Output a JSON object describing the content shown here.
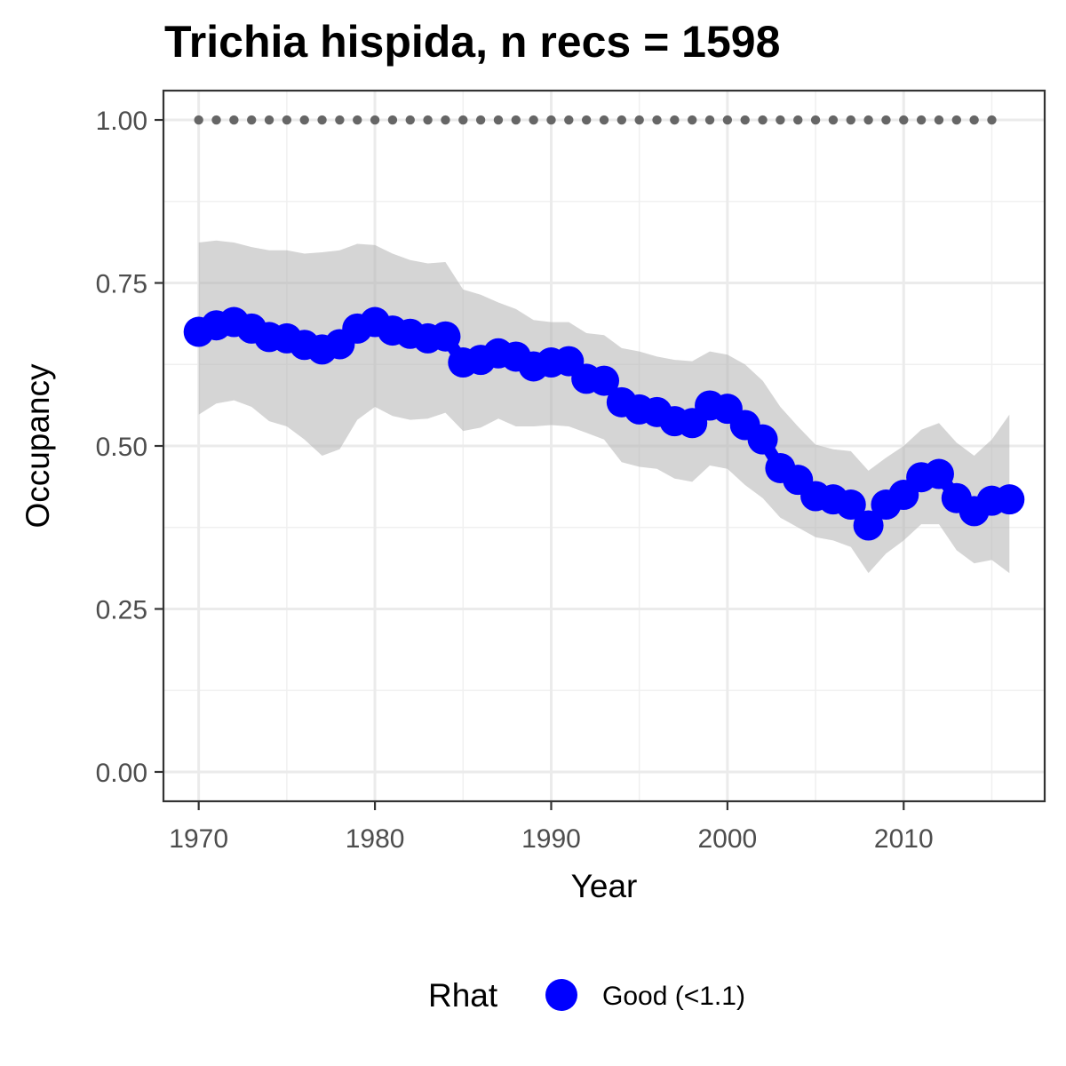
{
  "chart_data": {
    "type": "line",
    "title": "Trichia hispida, n recs = 1598",
    "xlabel": "Year",
    "ylabel": "Occupancy",
    "xlim": [
      1968,
      2018
    ],
    "ylim": [
      -0.045,
      1.045
    ],
    "x_ticks": [
      1970,
      1980,
      1990,
      2000,
      2010
    ],
    "x_tick_labels": [
      "1970",
      "1980",
      "1990",
      "2000",
      "2010"
    ],
    "y_ticks": [
      0,
      0.25,
      0.5,
      0.75,
      1
    ],
    "y_tick_labels": [
      "0.00",
      "0.25",
      "0.50",
      "0.75",
      "1.00"
    ],
    "grid": true,
    "legend": {
      "title": "Rhat",
      "position": "bottom",
      "entries": [
        {
          "label": "Good (<1.1)",
          "color": "#0000ff"
        }
      ]
    },
    "series": [
      {
        "name": "Good (<1.1)",
        "color": "#0000ff",
        "x": [
          1970,
          1971,
          1972,
          1973,
          1974,
          1975,
          1976,
          1977,
          1978,
          1979,
          1980,
          1981,
          1982,
          1983,
          1984,
          1985,
          1986,
          1987,
          1988,
          1989,
          1990,
          1991,
          1992,
          1993,
          1994,
          1995,
          1996,
          1997,
          1998,
          1999,
          2000,
          2001,
          2002,
          2003,
          2004,
          2005,
          2006,
          2007,
          2008,
          2009,
          2010,
          2011,
          2012,
          2013,
          2014,
          2015,
          2016
        ],
        "y": [
          0.675,
          0.685,
          0.69,
          0.68,
          0.667,
          0.665,
          0.655,
          0.648,
          0.656,
          0.68,
          0.69,
          0.677,
          0.672,
          0.665,
          0.668,
          0.628,
          0.632,
          0.642,
          0.637,
          0.622,
          0.628,
          0.63,
          0.603,
          0.6,
          0.567,
          0.556,
          0.552,
          0.538,
          0.535,
          0.562,
          0.557,
          0.532,
          0.51,
          0.466,
          0.448,
          0.423,
          0.418,
          0.41,
          0.378,
          0.41,
          0.425,
          0.452,
          0.457,
          0.42,
          0.4,
          0.416,
          0.418
        ],
        "lower": [
          0.548,
          0.565,
          0.57,
          0.56,
          0.538,
          0.53,
          0.51,
          0.485,
          0.495,
          0.54,
          0.56,
          0.546,
          0.54,
          0.542,
          0.551,
          0.523,
          0.528,
          0.542,
          0.53,
          0.53,
          0.532,
          0.53,
          0.52,
          0.51,
          0.475,
          0.468,
          0.465,
          0.45,
          0.445,
          0.47,
          0.465,
          0.44,
          0.42,
          0.39,
          0.375,
          0.36,
          0.355,
          0.345,
          0.305,
          0.335,
          0.355,
          0.38,
          0.38,
          0.34,
          0.32,
          0.325,
          0.305
        ],
        "upper": [
          0.812,
          0.815,
          0.812,
          0.805,
          0.8,
          0.8,
          0.795,
          0.797,
          0.8,
          0.81,
          0.808,
          0.795,
          0.785,
          0.78,
          0.782,
          0.74,
          0.732,
          0.72,
          0.71,
          0.693,
          0.69,
          0.69,
          0.673,
          0.67,
          0.65,
          0.645,
          0.637,
          0.632,
          0.63,
          0.645,
          0.64,
          0.625,
          0.6,
          0.56,
          0.53,
          0.502,
          0.495,
          0.492,
          0.462,
          0.482,
          0.5,
          0.525,
          0.535,
          0.505,
          0.485,
          0.51,
          0.548
        ]
      },
      {
        "name": "",
        "style": "dotted",
        "color": "#666666",
        "x": [
          1970,
          1971,
          1972,
          1973,
          1974,
          1975,
          1976,
          1977,
          1978,
          1979,
          1980,
          1981,
          1982,
          1983,
          1984,
          1985,
          1986,
          1987,
          1988,
          1989,
          1990,
          1991,
          1992,
          1993,
          1994,
          1995,
          1996,
          1997,
          1998,
          1999,
          2000,
          2001,
          2002,
          2003,
          2004,
          2005,
          2006,
          2007,
          2008,
          2009,
          2010,
          2011,
          2012,
          2013,
          2014,
          2015
        ],
        "y": [
          1,
          1,
          1,
          1,
          1,
          1,
          1,
          1,
          1,
          1,
          1,
          1,
          1,
          1,
          1,
          1,
          1,
          1,
          1,
          1,
          1,
          1,
          1,
          1,
          1,
          1,
          1,
          1,
          1,
          1,
          1,
          1,
          1,
          1,
          1,
          1,
          1,
          1,
          1,
          1,
          1,
          1,
          1,
          1,
          1,
          1
        ]
      }
    ]
  }
}
